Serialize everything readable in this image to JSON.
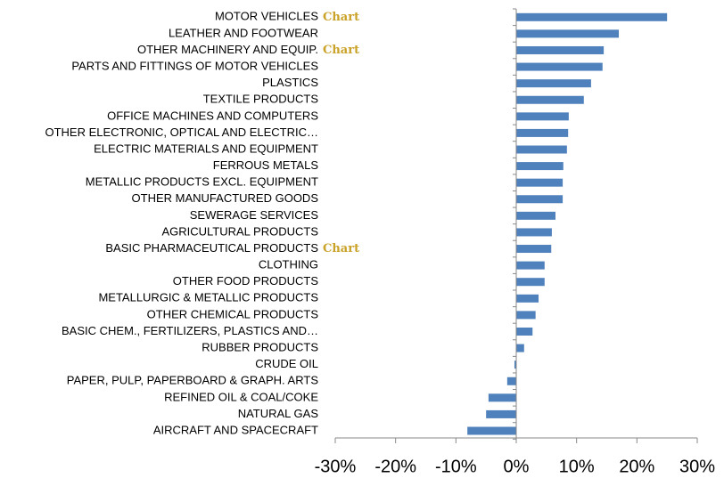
{
  "chart_data": {
    "type": "barh",
    "categories": [
      "MOTOR VEHICLES",
      "LEATHER AND FOOTWEAR",
      "OTHER MACHINERY AND EQUIP.",
      "PARTS AND FITTINGS OF MOTOR VEHICLES",
      "PLASTICS",
      "TEXTILE PRODUCTS",
      "OFFICE MACHINES AND COMPUTERS",
      "OTHER ELECTRONIC, OPTICAL AND ELECTRIC…",
      "ELECTRIC MATERIALS AND EQUIPMENT",
      "FERROUS METALS",
      "METALLIC PRODUCTS EXCL. EQUIPMENT",
      "OTHER MANUFACTURED GOODS",
      "SEWERAGE SERVICES",
      "AGRICULTURAL PRODUCTS",
      "BASIC PHARMACEUTICAL PRODUCTS",
      "CLOTHING",
      "OTHER FOOD PRODUCTS",
      "METALLURGIC & METALLIC PRODUCTS",
      "OTHER CHEMICAL PRODUCTS",
      "BASIC CHEM., FERTILIZERS, PLASTICS AND…",
      "RUBBER PRODUCTS",
      "CRUDE OIL",
      "PAPER, PULP, PAPERBOARD & GRAPH. ARTS",
      "REFINED OIL & COAL/COKE",
      "NATURAL GAS",
      "AIRCRAFT AND SPACECRAFT"
    ],
    "values": [
      25.0,
      17.0,
      14.5,
      14.3,
      12.4,
      11.2,
      8.7,
      8.6,
      8.4,
      7.8,
      7.7,
      7.7,
      6.5,
      5.9,
      5.8,
      4.7,
      4.7,
      3.7,
      3.2,
      2.7,
      1.3,
      -0.3,
      -1.5,
      -4.6,
      -5.0,
      -8.1
    ],
    "color": "#4f81bd",
    "xlim": [
      -30,
      30
    ],
    "xticks": [
      {
        "value": -30,
        "label": "-30%"
      },
      {
        "value": -20,
        "label": "-20%"
      },
      {
        "value": -10,
        "label": "-10%"
      },
      {
        "value": 0,
        "label": "0%"
      },
      {
        "value": 10,
        "label": "10%"
      },
      {
        "value": 20,
        "label": "20%"
      },
      {
        "value": 30,
        "label": "30%"
      }
    ],
    "annotations": [
      "Chart",
      "Chart",
      "Chart"
    ]
  }
}
